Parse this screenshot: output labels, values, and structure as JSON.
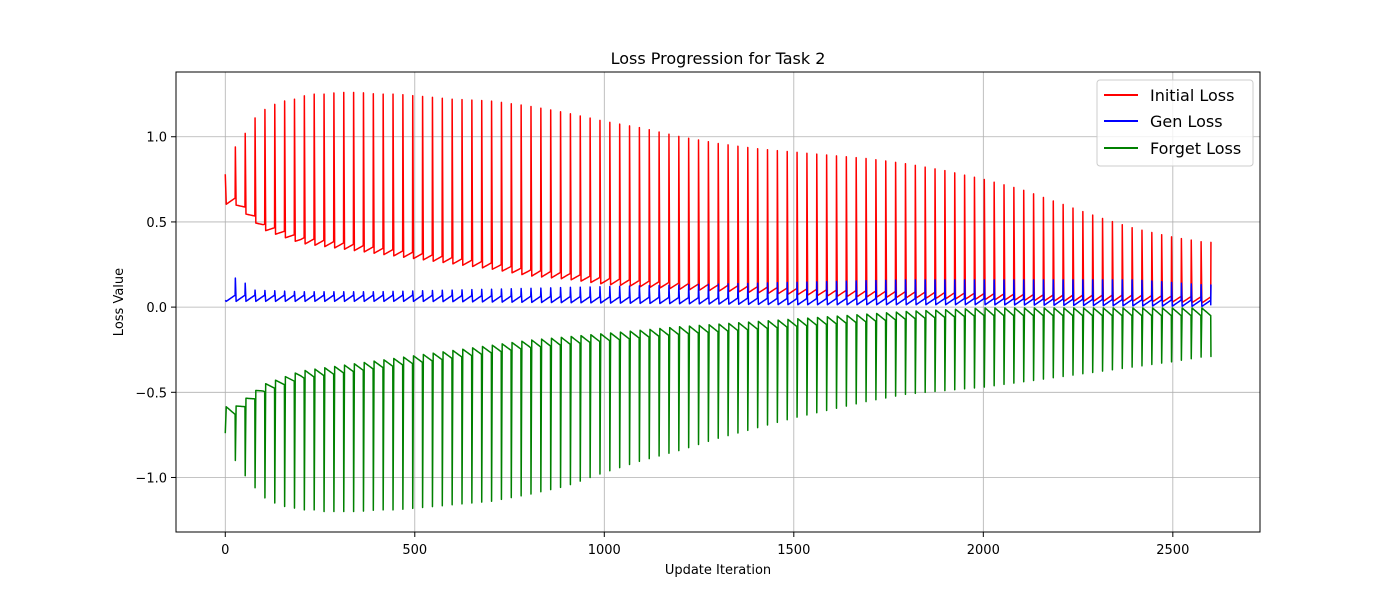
{
  "chart_data": {
    "type": "line",
    "title": "Loss Progression for Task 2",
    "xlabel": "Update Iteration",
    "ylabel": "Loss Value",
    "xlim": [
      -130,
      2730
    ],
    "ylim": [
      -1.32,
      1.38
    ],
    "xticks": [
      0,
      500,
      1000,
      1500,
      2000,
      2500
    ],
    "xtick_labels": [
      "0",
      "500",
      "1000",
      "1500",
      "2000",
      "2500"
    ],
    "yticks": [
      -1.0,
      -0.5,
      0.0,
      0.5,
      1.0
    ],
    "ytick_labels": [
      "−1.0",
      "−0.5",
      "0.0",
      "0.5",
      "1.0"
    ],
    "grid": true,
    "legend_position": "top-right",
    "series": [
      {
        "name": "Initial Loss",
        "color": "#ff0000",
        "start": [
          0,
          0.78
        ],
        "peaks": [
          [
            26,
            0.94
          ],
          [
            52,
            1.02
          ],
          [
            78,
            1.11
          ],
          [
            104,
            1.16
          ],
          [
            130,
            1.19
          ],
          [
            156,
            1.21
          ],
          [
            182,
            1.22
          ],
          [
            208,
            1.24
          ],
          [
            234,
            1.25
          ],
          [
            260,
            1.25
          ],
          [
            300,
            1.26
          ],
          [
            350,
            1.26
          ],
          [
            400,
            1.25
          ],
          [
            450,
            1.25
          ],
          [
            500,
            1.24
          ],
          [
            600,
            1.22
          ],
          [
            700,
            1.21
          ],
          [
            800,
            1.18
          ],
          [
            900,
            1.14
          ],
          [
            1000,
            1.09
          ],
          [
            1100,
            1.05
          ],
          [
            1200,
            1.0
          ],
          [
            1300,
            0.96
          ],
          [
            1400,
            0.93
          ],
          [
            1500,
            0.91
          ],
          [
            1600,
            0.89
          ],
          [
            1700,
            0.87
          ],
          [
            1800,
            0.84
          ],
          [
            1900,
            0.8
          ],
          [
            2000,
            0.75
          ],
          [
            2100,
            0.69
          ],
          [
            2200,
            0.61
          ],
          [
            2300,
            0.53
          ],
          [
            2400,
            0.46
          ],
          [
            2500,
            0.41
          ],
          [
            2584,
            0.38
          ]
        ],
        "troughs": [
          [
            26,
            0.6
          ],
          [
            100,
            0.45
          ],
          [
            200,
            0.37
          ],
          [
            300,
            0.34
          ],
          [
            400,
            0.31
          ],
          [
            500,
            0.28
          ],
          [
            600,
            0.25
          ],
          [
            700,
            0.22
          ],
          [
            800,
            0.18
          ],
          [
            900,
            0.16
          ],
          [
            1000,
            0.13
          ],
          [
            1200,
            0.1
          ],
          [
            1400,
            0.08
          ],
          [
            1600,
            0.06
          ],
          [
            1800,
            0.05
          ],
          [
            2000,
            0.04
          ],
          [
            2200,
            0.03
          ],
          [
            2400,
            0.03
          ],
          [
            2584,
            0.02
          ]
        ],
        "end": [
          2600,
          0.03
        ]
      },
      {
        "name": "Gen Loss",
        "color": "#0000ff",
        "start": [
          0,
          0.04
        ],
        "peaks": [
          [
            26,
            0.17
          ],
          [
            52,
            0.14
          ],
          [
            78,
            0.1
          ],
          [
            200,
            0.09
          ],
          [
            400,
            0.09
          ],
          [
            600,
            0.1
          ],
          [
            800,
            0.11
          ],
          [
            1000,
            0.12
          ],
          [
            1200,
            0.13
          ],
          [
            1400,
            0.14
          ],
          [
            1600,
            0.15
          ],
          [
            1800,
            0.16
          ],
          [
            2000,
            0.16
          ],
          [
            2200,
            0.16
          ],
          [
            2400,
            0.16
          ],
          [
            2584,
            0.13
          ]
        ],
        "troughs": [
          [
            26,
            0.03
          ],
          [
            500,
            0.03
          ],
          [
            1000,
            0.02
          ],
          [
            1500,
            0.01
          ],
          [
            2000,
            0.01
          ],
          [
            2584,
            0.0
          ]
        ],
        "end": [
          2600,
          0.01
        ]
      },
      {
        "name": "Forget Loss",
        "color": "#008000",
        "start": [
          0,
          -0.74
        ],
        "peaks": [
          [
            26,
            -0.58
          ],
          [
            100,
            -0.45
          ],
          [
            200,
            -0.37
          ],
          [
            300,
            -0.34
          ],
          [
            400,
            -0.31
          ],
          [
            500,
            -0.28
          ],
          [
            600,
            -0.25
          ],
          [
            700,
            -0.22
          ],
          [
            800,
            -0.19
          ],
          [
            900,
            -0.17
          ],
          [
            1000,
            -0.15
          ],
          [
            1200,
            -0.11
          ],
          [
            1400,
            -0.08
          ],
          [
            1600,
            -0.05
          ],
          [
            1800,
            -0.02
          ],
          [
            2000,
            0.0
          ],
          [
            2200,
            0.0
          ],
          [
            2584,
            0.0
          ]
        ],
        "troughs": [
          [
            26,
            -0.9
          ],
          [
            52,
            -0.99
          ],
          [
            78,
            -1.06
          ],
          [
            104,
            -1.12
          ],
          [
            130,
            -1.15
          ],
          [
            156,
            -1.17
          ],
          [
            182,
            -1.18
          ],
          [
            208,
            -1.19
          ],
          [
            234,
            -1.19
          ],
          [
            260,
            -1.2
          ],
          [
            300,
            -1.2
          ],
          [
            350,
            -1.2
          ],
          [
            400,
            -1.19
          ],
          [
            450,
            -1.19
          ],
          [
            500,
            -1.18
          ],
          [
            600,
            -1.16
          ],
          [
            700,
            -1.14
          ],
          [
            800,
            -1.1
          ],
          [
            900,
            -1.05
          ],
          [
            1000,
            -0.97
          ],
          [
            1100,
            -0.9
          ],
          [
            1200,
            -0.84
          ],
          [
            1300,
            -0.77
          ],
          [
            1400,
            -0.71
          ],
          [
            1500,
            -0.65
          ],
          [
            1600,
            -0.6
          ],
          [
            1700,
            -0.55
          ],
          [
            1800,
            -0.51
          ],
          [
            1900,
            -0.49
          ],
          [
            2000,
            -0.47
          ],
          [
            2100,
            -0.44
          ],
          [
            2200,
            -0.41
          ],
          [
            2300,
            -0.38
          ],
          [
            2400,
            -0.35
          ],
          [
            2500,
            -0.32
          ],
          [
            2584,
            -0.29
          ]
        ],
        "end": [
          2600,
          -0.06
        ]
      }
    ]
  }
}
